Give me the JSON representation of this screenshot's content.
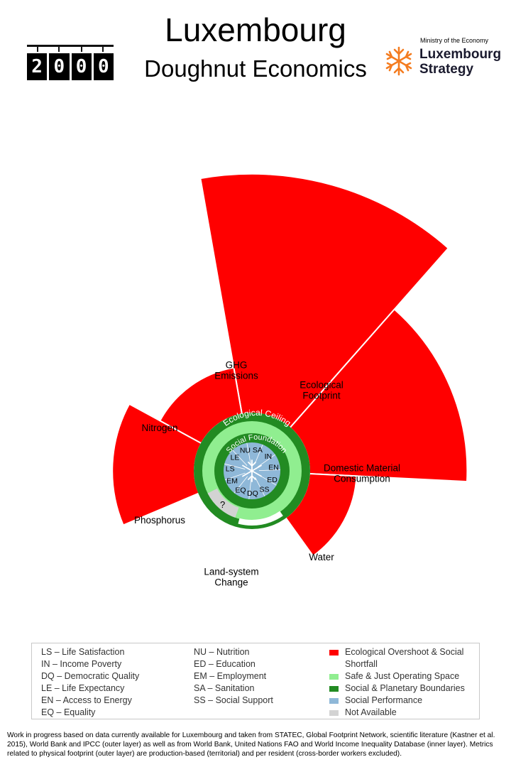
{
  "header": {
    "title": "Luxembourg",
    "subtitle": "Doughnut Economics",
    "year_digits": [
      "2",
      "0",
      "0",
      "0"
    ],
    "ministry": "Ministry of the Economy",
    "strategy_line1": "Luxembourg",
    "strategy_line2": "Strategy"
  },
  "colors": {
    "overshoot": "#ff0000",
    "safe_space": "#90ee90",
    "boundaries": "#228b22",
    "social_performance": "#8fb8d8",
    "not_available": "#d3d3d3",
    "logo_orange": "#f47c20"
  },
  "chart_data": {
    "type": "doughnut-radial",
    "ring_labels": {
      "outer": "Ecological Ceiling",
      "inner": "Social Foundation"
    },
    "ecological": [
      {
        "label": "GHG Emissions",
        "value": 5.1,
        "status": "overshoot"
      },
      {
        "label": "Ecological Footprint",
        "value": 3.7,
        "status": "overshoot"
      },
      {
        "label": "Domestic Material Consumption",
        "value": 1.8,
        "status": "overshoot"
      },
      {
        "label": "Water",
        "value": 0.55,
        "status": "within"
      },
      {
        "label": "Land-system Change",
        "value": null,
        "status": "not_available",
        "marker": "?"
      },
      {
        "label": "Phosphorus",
        "value": 2.4,
        "status": "overshoot"
      },
      {
        "label": "Nitrogen",
        "value": 1.8,
        "status": "overshoot"
      }
    ],
    "social": [
      "NU",
      "SA",
      "IN",
      "EN",
      "ED",
      "SS",
      "DQ",
      "EQ",
      "EM",
      "LS",
      "LE"
    ]
  },
  "legend": {
    "col1": [
      "LS – Life Satisfaction",
      "IN – Income Poverty",
      "DQ – Democratic Quality",
      "LE – Life Expectancy",
      "EN – Access to Energy",
      "EQ – Equality"
    ],
    "col2": [
      "NU – Nutrition",
      "ED – Education",
      "EM – Employment",
      "SA – Sanitation",
      "SS – Social Support"
    ],
    "col3": [
      {
        "label": "Ecological Overshoot & Social",
        "label2": "Shortfall",
        "color_key": "overshoot"
      },
      {
        "label": "Safe & Just Operating Space",
        "color_key": "safe_space"
      },
      {
        "label": "Social & Planetary Boundaries",
        "color_key": "boundaries"
      },
      {
        "label": "Social Performance",
        "color_key": "social_performance"
      },
      {
        "label": "Not Available",
        "color_key": "not_available"
      }
    ]
  },
  "footnote": "Work in progress based on data currently available for Luxembourg and taken from STATEC, Global Footprint Network, scientific literature (Kastner et al. 2015), World Bank and IPCC (outer layer) as well as from World Bank, United Nations FAO and World Income Inequality Database (inner layer). Metrics related to physical footprint (outer layer) are production-based (territorial) and per resident (cross-border workers excluded)."
}
